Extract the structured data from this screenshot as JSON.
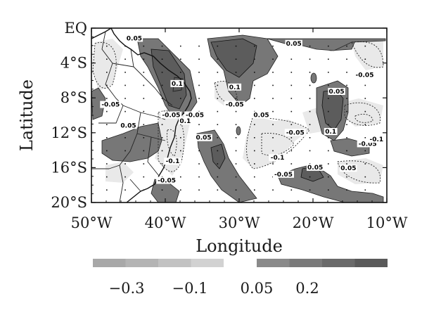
{
  "chart_data": {
    "type": "heatmap",
    "title": "",
    "xlabel": "Longitude",
    "ylabel": "Latitude",
    "xlim": [
      -50,
      -10
    ],
    "ylim": [
      -20,
      0
    ],
    "x_ticks": [
      {
        "value": -50,
        "label": "50°W"
      },
      {
        "value": -40,
        "label": "40°W"
      },
      {
        "value": -30,
        "label": "30°W"
      },
      {
        "value": -20,
        "label": "20°W"
      },
      {
        "value": -10,
        "label": "10°W"
      }
    ],
    "y_ticks": [
      {
        "value": 0,
        "label": "EQ"
      },
      {
        "value": -4,
        "label": "4°S"
      },
      {
        "value": -8,
        "label": "8°S"
      },
      {
        "value": -12,
        "label": "12°S"
      },
      {
        "value": -16,
        "label": "16°S"
      },
      {
        "value": -20,
        "label": "20°S"
      }
    ],
    "colorbar": {
      "negative_colors": [
        "#a8a8a8",
        "#b4b4b4",
        "#c2c2c2",
        "#d2d2d2"
      ],
      "positive_colors": [
        "#8a8a8a",
        "#7a7a7a",
        "#6a6a6a",
        "#5a5a5a"
      ],
      "labels": [
        "−0.3",
        "−0.1",
        "0.05",
        "0.2"
      ]
    },
    "contour_labels": [
      {
        "text": "0.05",
        "lon": -44.2,
        "lat": -1.4
      },
      {
        "text": "0.05",
        "lon": -22.6,
        "lat": -2.0
      },
      {
        "text": "-0.05",
        "lon": -13.0,
        "lat": -5.6
      },
      {
        "text": "0.1",
        "lon": -30.6,
        "lat": -7.0
      },
      {
        "text": "-0.05",
        "lon": -30.6,
        "lat": -9.0
      },
      {
        "text": "0.05",
        "lon": -27.0,
        "lat": -10.2
      },
      {
        "text": "-0.05",
        "lon": -47.4,
        "lat": -9.0
      },
      {
        "text": "0.05",
        "lon": -45.0,
        "lat": -11.4
      },
      {
        "text": "-0.05",
        "lon": -39.2,
        "lat": -10.2
      },
      {
        "text": "-0.05",
        "lon": -36.0,
        "lat": -10.2
      },
      {
        "text": "0.1",
        "lon": -37.3,
        "lat": -10.9
      },
      {
        "text": "0.1",
        "lon": -38.4,
        "lat": -6.6
      },
      {
        "text": "0.05",
        "lon": -16.8,
        "lat": -7.5
      },
      {
        "text": "0.1",
        "lon": -17.6,
        "lat": -12.1
      },
      {
        "text": "-0.05",
        "lon": -22.4,
        "lat": -12.2
      },
      {
        "text": "-0.05",
        "lon": -12.6,
        "lat": -13.5
      },
      {
        "text": "-0.1",
        "lon": -11.4,
        "lat": -13.0
      },
      {
        "text": "0.05",
        "lon": -34.8,
        "lat": -12.8
      },
      {
        "text": "-0.1",
        "lon": -24.8,
        "lat": -15.1
      },
      {
        "text": "0.05",
        "lon": -19.7,
        "lat": -16.2
      },
      {
        "text": "-0.05",
        "lon": -24.0,
        "lat": -17.0
      },
      {
        "text": "0.05",
        "lon": -15.2,
        "lat": -16.3
      },
      {
        "text": "-0.05",
        "lon": -39.8,
        "lat": -17.7
      },
      {
        "text": "-0.1",
        "lon": -39.0,
        "lat": -15.5
      }
    ]
  }
}
